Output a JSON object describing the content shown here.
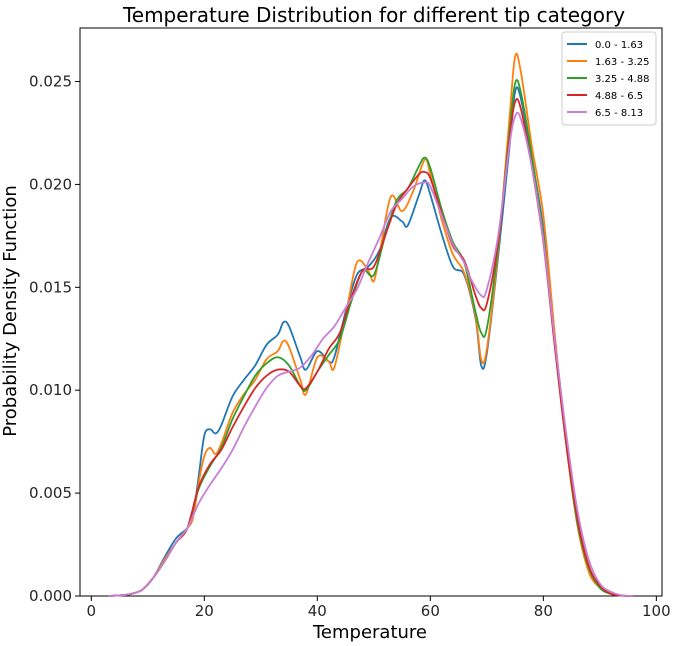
{
  "chart_data": {
    "type": "line",
    "title": "Temperature Distribution for different tip category",
    "xlabel": "Temperature",
    "ylabel": "Probability Density Function",
    "xlim": [
      -2,
      101
    ],
    "ylim": [
      0,
      0.0276
    ],
    "xticks": [
      0,
      20,
      40,
      60,
      80,
      100
    ],
    "xtick_labels": [
      "0",
      "20",
      "40",
      "60",
      "80",
      "100"
    ],
    "yticks": [
      0.0,
      0.005,
      0.01,
      0.015,
      0.02,
      0.025
    ],
    "ytick_labels": [
      "0.000",
      "0.005",
      "0.010",
      "0.015",
      "0.020",
      "0.025"
    ],
    "grid": false,
    "legend_position": "top-right",
    "series": [
      {
        "name": "0.0 - 1.63",
        "color": "#1f77b4",
        "points": [
          [
            3,
            0
          ],
          [
            5,
            3e-05
          ],
          [
            7,
            0.0001
          ],
          [
            9,
            0.0003
          ],
          [
            11,
            0.0009
          ],
          [
            13,
            0.0019
          ],
          [
            15,
            0.0028
          ],
          [
            17,
            0.0033
          ],
          [
            18,
            0.0039
          ],
          [
            19,
            0.0058
          ],
          [
            20,
            0.0078
          ],
          [
            21,
            0.0081
          ],
          [
            22,
            0.0079
          ],
          [
            23,
            0.0083
          ],
          [
            25,
            0.0097
          ],
          [
            27,
            0.0105
          ],
          [
            29,
            0.0112
          ],
          [
            31,
            0.0122
          ],
          [
            33,
            0.0127
          ],
          [
            34,
            0.0133
          ],
          [
            35,
            0.0131
          ],
          [
            37,
            0.0116
          ],
          [
            38,
            0.011
          ],
          [
            40,
            0.0119
          ],
          [
            42,
            0.0114
          ],
          [
            43,
            0.0116
          ],
          [
            45,
            0.0138
          ],
          [
            47,
            0.0156
          ],
          [
            49,
            0.016
          ],
          [
            51,
            0.0168
          ],
          [
            53,
            0.0184
          ],
          [
            55,
            0.0182
          ],
          [
            56,
            0.018
          ],
          [
            58,
            0.0195
          ],
          [
            59,
            0.0202
          ],
          [
            60,
            0.0195
          ],
          [
            62,
            0.0176
          ],
          [
            64,
            0.016
          ],
          [
            66,
            0.0156
          ],
          [
            68,
            0.0135
          ],
          [
            69,
            0.0112
          ],
          [
            70,
            0.0118
          ],
          [
            72,
            0.0165
          ],
          [
            74,
            0.0218
          ],
          [
            75,
            0.0245
          ],
          [
            76,
            0.0242
          ],
          [
            78,
            0.0212
          ],
          [
            80,
            0.0178
          ],
          [
            82,
            0.0125
          ],
          [
            84,
            0.0078
          ],
          [
            86,
            0.0035
          ],
          [
            88,
            0.0013
          ],
          [
            90,
            0.0004
          ],
          [
            92,
            0.0001
          ],
          [
            94,
            2e-05
          ],
          [
            96,
            0
          ]
        ]
      },
      {
        "name": "1.63 - 3.25",
        "color": "#ff7f0e",
        "points": [
          [
            3,
            0
          ],
          [
            5,
            3e-05
          ],
          [
            7,
            0.0001
          ],
          [
            9,
            0.0003
          ],
          [
            11,
            0.0009
          ],
          [
            13,
            0.0018
          ],
          [
            15,
            0.0026
          ],
          [
            17,
            0.0033
          ],
          [
            18,
            0.0038
          ],
          [
            19,
            0.0055
          ],
          [
            20,
            0.0068
          ],
          [
            21,
            0.0072
          ],
          [
            22,
            0.0069
          ],
          [
            23,
            0.0074
          ],
          [
            25,
            0.0089
          ],
          [
            27,
            0.0098
          ],
          [
            29,
            0.0105
          ],
          [
            31,
            0.0115
          ],
          [
            33,
            0.0119
          ],
          [
            34,
            0.0124
          ],
          [
            35,
            0.0121
          ],
          [
            37,
            0.0105
          ],
          [
            38,
            0.0098
          ],
          [
            40,
            0.0116
          ],
          [
            42,
            0.0114
          ],
          [
            43,
            0.0111
          ],
          [
            45,
            0.0136
          ],
          [
            47,
            0.0162
          ],
          [
            49,
            0.0158
          ],
          [
            50,
            0.0153
          ],
          [
            51,
            0.0166
          ],
          [
            53,
            0.0194
          ],
          [
            55,
            0.0187
          ],
          [
            57,
            0.0197
          ],
          [
            59,
            0.0212
          ],
          [
            60,
            0.0205
          ],
          [
            62,
            0.0183
          ],
          [
            64,
            0.0166
          ],
          [
            66,
            0.0157
          ],
          [
            68,
            0.0136
          ],
          [
            69,
            0.0115
          ],
          [
            70,
            0.012
          ],
          [
            72,
            0.0168
          ],
          [
            74,
            0.0232
          ],
          [
            75,
            0.0262
          ],
          [
            76,
            0.0255
          ],
          [
            78,
            0.0218
          ],
          [
            80,
            0.0185
          ],
          [
            82,
            0.0128
          ],
          [
            84,
            0.0075
          ],
          [
            86,
            0.0035
          ],
          [
            88,
            0.0012
          ],
          [
            90,
            0.0004
          ],
          [
            92,
            0.0001
          ],
          [
            94,
            2e-05
          ],
          [
            96,
            0
          ]
        ]
      },
      {
        "name": "3.25 - 4.88",
        "color": "#2ca02c",
        "points": [
          [
            3,
            0
          ],
          [
            5,
            3e-05
          ],
          [
            7,
            0.0001
          ],
          [
            9,
            0.0003
          ],
          [
            11,
            0.0009
          ],
          [
            13,
            0.0017
          ],
          [
            15,
            0.0026
          ],
          [
            17,
            0.0033
          ],
          [
            19,
            0.0052
          ],
          [
            21,
            0.0063
          ],
          [
            23,
            0.0072
          ],
          [
            25,
            0.0086
          ],
          [
            27,
            0.0097
          ],
          [
            29,
            0.0107
          ],
          [
            31,
            0.0113
          ],
          [
            33,
            0.0116
          ],
          [
            35,
            0.0112
          ],
          [
            37,
            0.0102
          ],
          [
            38,
            0.01
          ],
          [
            40,
            0.0109
          ],
          [
            42,
            0.0117
          ],
          [
            44,
            0.0125
          ],
          [
            46,
            0.0143
          ],
          [
            48,
            0.0158
          ],
          [
            50,
            0.0156
          ],
          [
            52,
            0.0175
          ],
          [
            54,
            0.0192
          ],
          [
            56,
            0.0198
          ],
          [
            58,
            0.0209
          ],
          [
            59,
            0.0213
          ],
          [
            60,
            0.0208
          ],
          [
            62,
            0.0188
          ],
          [
            64,
            0.0172
          ],
          [
            66,
            0.0162
          ],
          [
            68,
            0.0138
          ],
          [
            69,
            0.0128
          ],
          [
            70,
            0.013
          ],
          [
            72,
            0.017
          ],
          [
            74,
            0.0225
          ],
          [
            75,
            0.0249
          ],
          [
            76,
            0.0245
          ],
          [
            78,
            0.0213
          ],
          [
            80,
            0.0175
          ],
          [
            82,
            0.0123
          ],
          [
            84,
            0.0075
          ],
          [
            86,
            0.0036
          ],
          [
            88,
            0.0014
          ],
          [
            90,
            0.0004
          ],
          [
            92,
            0.0001
          ],
          [
            94,
            2e-05
          ],
          [
            96,
            0
          ]
        ]
      },
      {
        "name": "4.88 - 6.5",
        "color": "#d62728",
        "points": [
          [
            3,
            0
          ],
          [
            5,
            3e-05
          ],
          [
            7,
            0.0001
          ],
          [
            9,
            0.0003
          ],
          [
            11,
            0.0009
          ],
          [
            13,
            0.0017
          ],
          [
            15,
            0.0026
          ],
          [
            17,
            0.0033
          ],
          [
            19,
            0.0053
          ],
          [
            21,
            0.0064
          ],
          [
            23,
            0.0071
          ],
          [
            25,
            0.0082
          ],
          [
            27,
            0.0092
          ],
          [
            29,
            0.0101
          ],
          [
            31,
            0.0107
          ],
          [
            33,
            0.011
          ],
          [
            35,
            0.0109
          ],
          [
            37,
            0.0102
          ],
          [
            38,
            0.0101
          ],
          [
            40,
            0.0109
          ],
          [
            42,
            0.012
          ],
          [
            44,
            0.0128
          ],
          [
            46,
            0.0145
          ],
          [
            48,
            0.0158
          ],
          [
            50,
            0.016
          ],
          [
            52,
            0.0175
          ],
          [
            54,
            0.019
          ],
          [
            56,
            0.0198
          ],
          [
            58,
            0.0205
          ],
          [
            59,
            0.0206
          ],
          [
            60,
            0.0203
          ],
          [
            62,
            0.0186
          ],
          [
            64,
            0.017
          ],
          [
            66,
            0.0163
          ],
          [
            68,
            0.0146
          ],
          [
            69,
            0.014
          ],
          [
            70,
            0.0142
          ],
          [
            72,
            0.0172
          ],
          [
            74,
            0.0222
          ],
          [
            75,
            0.024
          ],
          [
            76,
            0.0237
          ],
          [
            78,
            0.0208
          ],
          [
            80,
            0.0172
          ],
          [
            82,
            0.0122
          ],
          [
            84,
            0.0075
          ],
          [
            86,
            0.0038
          ],
          [
            88,
            0.0015
          ],
          [
            90,
            0.0005
          ],
          [
            92,
            0.0001
          ],
          [
            94,
            2e-05
          ],
          [
            96,
            0
          ]
        ]
      },
      {
        "name": "6.5 - 8.13",
        "color": "#c77fd8",
        "points": [
          [
            3,
            0
          ],
          [
            5,
            3e-05
          ],
          [
            7,
            0.0001
          ],
          [
            9,
            0.0003
          ],
          [
            11,
            0.0009
          ],
          [
            13,
            0.0017
          ],
          [
            15,
            0.0026
          ],
          [
            17,
            0.0033
          ],
          [
            19,
            0.0045
          ],
          [
            21,
            0.0054
          ],
          [
            23,
            0.0062
          ],
          [
            25,
            0.0071
          ],
          [
            27,
            0.0082
          ],
          [
            29,
            0.0092
          ],
          [
            31,
            0.0101
          ],
          [
            33,
            0.0107
          ],
          [
            35,
            0.0109
          ],
          [
            37,
            0.0111
          ],
          [
            39,
            0.0117
          ],
          [
            41,
            0.0125
          ],
          [
            43,
            0.0131
          ],
          [
            45,
            0.014
          ],
          [
            47,
            0.0149
          ],
          [
            49,
            0.0162
          ],
          [
            51,
            0.0174
          ],
          [
            53,
            0.0187
          ],
          [
            55,
            0.0193
          ],
          [
            57,
            0.0199
          ],
          [
            59,
            0.0201
          ],
          [
            60,
            0.0199
          ],
          [
            62,
            0.0185
          ],
          [
            64,
            0.0171
          ],
          [
            66,
            0.0162
          ],
          [
            67,
            0.0155
          ],
          [
            69,
            0.0146
          ],
          [
            70,
            0.0149
          ],
          [
            72,
            0.0175
          ],
          [
            74,
            0.0219
          ],
          [
            75,
            0.0233
          ],
          [
            76,
            0.0232
          ],
          [
            78,
            0.0208
          ],
          [
            80,
            0.0173
          ],
          [
            82,
            0.0125
          ],
          [
            84,
            0.008
          ],
          [
            86,
            0.0042
          ],
          [
            88,
            0.0018
          ],
          [
            90,
            0.0006
          ],
          [
            92,
            0.0002
          ],
          [
            94,
            3e-05
          ],
          [
            96,
            0
          ]
        ]
      }
    ]
  }
}
